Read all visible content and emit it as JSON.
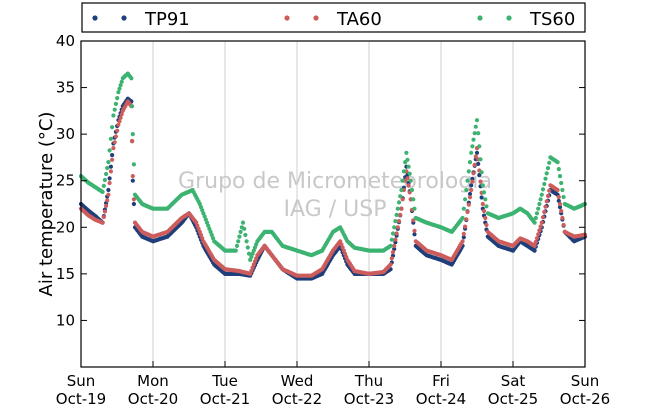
{
  "chart_data": {
    "type": "scatter",
    "title": "",
    "xlabel": "",
    "ylabel": "Air temperature (°C)",
    "ylim": [
      5,
      40
    ],
    "yticks": [
      10,
      15,
      20,
      25,
      30,
      35,
      40
    ],
    "xlim": [
      0,
      7
    ],
    "x_ticks": [
      {
        "day": "Sun",
        "date": "Oct-19"
      },
      {
        "day": "Mon",
        "date": "Oct-20"
      },
      {
        "day": "Tue",
        "date": "Oct-21"
      },
      {
        "day": "Wed",
        "date": "Oct-22"
      },
      {
        "day": "Thu",
        "date": "Oct-23"
      },
      {
        "day": "Fri",
        "date": "Oct-24"
      },
      {
        "day": "Sat",
        "date": "Oct-25"
      },
      {
        "day": "Sun",
        "date": "Oct-26"
      }
    ],
    "grid": "vertical",
    "legend_position": "top",
    "watermark": [
      "Grupo de Micrometeorologia",
      "IAG / USP"
    ],
    "series": [
      {
        "name": "TP91",
        "color": "#1f3f7a",
        "points": [
          [
            0.0,
            22.5
          ],
          [
            0.1,
            21.8
          ],
          [
            0.2,
            21.2
          ],
          [
            0.3,
            20.5
          ],
          [
            0.38,
            24.0
          ],
          [
            0.45,
            29.0
          ],
          [
            0.52,
            31.5
          ],
          [
            0.58,
            33.0
          ],
          [
            0.65,
            33.8
          ],
          [
            0.7,
            33.5
          ],
          [
            0.72,
            25.0
          ],
          [
            0.75,
            20.0
          ],
          [
            0.85,
            19.0
          ],
          [
            1.0,
            18.5
          ],
          [
            1.2,
            19.0
          ],
          [
            1.4,
            20.5
          ],
          [
            1.5,
            21.5
          ],
          [
            1.6,
            20.0
          ],
          [
            1.7,
            18.0
          ],
          [
            1.85,
            16.0
          ],
          [
            2.0,
            15.0
          ],
          [
            2.2,
            15.0
          ],
          [
            2.35,
            14.8
          ],
          [
            2.45,
            16.5
          ],
          [
            2.55,
            18.0
          ],
          [
            2.65,
            17.0
          ],
          [
            2.8,
            15.5
          ],
          [
            3.0,
            14.5
          ],
          [
            3.2,
            14.5
          ],
          [
            3.35,
            15.0
          ],
          [
            3.5,
            17.0
          ],
          [
            3.6,
            18.0
          ],
          [
            3.7,
            16.0
          ],
          [
            3.8,
            15.0
          ],
          [
            4.0,
            15.0
          ],
          [
            4.2,
            15.0
          ],
          [
            4.3,
            15.5
          ],
          [
            4.45,
            22.0
          ],
          [
            4.52,
            26.5
          ],
          [
            4.58,
            23.0
          ],
          [
            4.65,
            18.0
          ],
          [
            4.8,
            17.0
          ],
          [
            5.0,
            16.5
          ],
          [
            5.15,
            16.0
          ],
          [
            5.3,
            18.0
          ],
          [
            5.42,
            24.5
          ],
          [
            5.5,
            28.0
          ],
          [
            5.58,
            22.0
          ],
          [
            5.65,
            19.0
          ],
          [
            5.8,
            18.0
          ],
          [
            6.0,
            17.5
          ],
          [
            6.1,
            18.5
          ],
          [
            6.2,
            18.0
          ],
          [
            6.3,
            17.5
          ],
          [
            6.4,
            20.0
          ],
          [
            6.52,
            24.0
          ],
          [
            6.62,
            23.5
          ],
          [
            6.72,
            19.5
          ],
          [
            6.85,
            18.5
          ],
          [
            7.0,
            19.0
          ]
        ]
      },
      {
        "name": "TA60",
        "color": "#cd5c5c",
        "points": [
          [
            0.0,
            22.0
          ],
          [
            0.1,
            21.3
          ],
          [
            0.2,
            20.8
          ],
          [
            0.3,
            20.5
          ],
          [
            0.38,
            23.5
          ],
          [
            0.45,
            28.5
          ],
          [
            0.52,
            31.0
          ],
          [
            0.58,
            32.5
          ],
          [
            0.65,
            33.5
          ],
          [
            0.7,
            33.0
          ],
          [
            0.72,
            25.5
          ],
          [
            0.75,
            20.5
          ],
          [
            0.85,
            19.5
          ],
          [
            1.0,
            19.0
          ],
          [
            1.2,
            19.5
          ],
          [
            1.4,
            21.0
          ],
          [
            1.5,
            21.5
          ],
          [
            1.6,
            20.5
          ],
          [
            1.7,
            18.5
          ],
          [
            1.85,
            16.5
          ],
          [
            2.0,
            15.5
          ],
          [
            2.2,
            15.3
          ],
          [
            2.35,
            15.0
          ],
          [
            2.45,
            17.0
          ],
          [
            2.55,
            18.0
          ],
          [
            2.65,
            17.0
          ],
          [
            2.8,
            15.5
          ],
          [
            3.0,
            14.8
          ],
          [
            3.2,
            14.8
          ],
          [
            3.35,
            15.5
          ],
          [
            3.5,
            17.5
          ],
          [
            3.6,
            18.5
          ],
          [
            3.7,
            16.5
          ],
          [
            3.8,
            15.3
          ],
          [
            4.0,
            15.0
          ],
          [
            4.2,
            15.2
          ],
          [
            4.3,
            16.0
          ],
          [
            4.45,
            22.0
          ],
          [
            4.52,
            26.0
          ],
          [
            4.58,
            23.0
          ],
          [
            4.65,
            18.5
          ],
          [
            4.8,
            17.5
          ],
          [
            5.0,
            17.0
          ],
          [
            5.15,
            16.5
          ],
          [
            5.3,
            18.5
          ],
          [
            5.42,
            24.0
          ],
          [
            5.5,
            28.5
          ],
          [
            5.58,
            22.5
          ],
          [
            5.65,
            19.5
          ],
          [
            5.8,
            18.5
          ],
          [
            6.0,
            18.0
          ],
          [
            6.1,
            18.8
          ],
          [
            6.2,
            18.5
          ],
          [
            6.3,
            18.0
          ],
          [
            6.4,
            20.5
          ],
          [
            6.52,
            24.5
          ],
          [
            6.62,
            24.0
          ],
          [
            6.72,
            19.5
          ],
          [
            6.85,
            19.0
          ],
          [
            7.0,
            19.2
          ]
        ]
      },
      {
        "name": "TS60",
        "color": "#3cb371",
        "points": [
          [
            0.0,
            25.5
          ],
          [
            0.1,
            24.8
          ],
          [
            0.2,
            24.3
          ],
          [
            0.3,
            23.8
          ],
          [
            0.38,
            27.0
          ],
          [
            0.45,
            32.0
          ],
          [
            0.52,
            34.5
          ],
          [
            0.58,
            36.0
          ],
          [
            0.65,
            36.5
          ],
          [
            0.7,
            36.0
          ],
          [
            0.72,
            30.0
          ],
          [
            0.75,
            23.5
          ],
          [
            0.85,
            22.5
          ],
          [
            1.0,
            22.0
          ],
          [
            1.2,
            22.0
          ],
          [
            1.4,
            23.5
          ],
          [
            1.55,
            24.0
          ],
          [
            1.65,
            22.5
          ],
          [
            1.75,
            20.5
          ],
          [
            1.85,
            18.5
          ],
          [
            2.0,
            17.5
          ],
          [
            2.15,
            17.5
          ],
          [
            2.25,
            20.5
          ],
          [
            2.35,
            16.5
          ],
          [
            2.45,
            18.5
          ],
          [
            2.55,
            19.5
          ],
          [
            2.65,
            19.5
          ],
          [
            2.8,
            18.0
          ],
          [
            3.0,
            17.5
          ],
          [
            3.2,
            17.0
          ],
          [
            3.35,
            17.5
          ],
          [
            3.5,
            19.5
          ],
          [
            3.6,
            20.0
          ],
          [
            3.7,
            18.5
          ],
          [
            3.8,
            17.8
          ],
          [
            4.0,
            17.5
          ],
          [
            4.2,
            17.5
          ],
          [
            4.3,
            18.0
          ],
          [
            4.45,
            24.0
          ],
          [
            4.52,
            28.0
          ],
          [
            4.58,
            25.0
          ],
          [
            4.65,
            21.0
          ],
          [
            4.8,
            20.5
          ],
          [
            5.0,
            20.0
          ],
          [
            5.15,
            19.5
          ],
          [
            5.3,
            21.0
          ],
          [
            5.42,
            28.0
          ],
          [
            5.5,
            31.5
          ],
          [
            5.58,
            24.5
          ],
          [
            5.65,
            21.5
          ],
          [
            5.8,
            21.0
          ],
          [
            6.0,
            21.5
          ],
          [
            6.1,
            22.0
          ],
          [
            6.2,
            21.5
          ],
          [
            6.3,
            20.5
          ],
          [
            6.4,
            23.5
          ],
          [
            6.52,
            27.5
          ],
          [
            6.62,
            27.0
          ],
          [
            6.72,
            22.5
          ],
          [
            6.85,
            22.0
          ],
          [
            7.0,
            22.5
          ]
        ]
      }
    ]
  }
}
